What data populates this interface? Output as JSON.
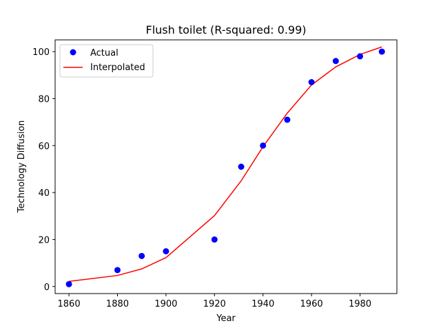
{
  "chart_data": {
    "type": "scatter",
    "title": "Flush toilet (R-squared: 0.99)",
    "xlabel": "Year",
    "ylabel": "Technology Diffusion",
    "xlim": [
      1854.3,
      1995.2
    ],
    "ylim": [
      -3.0,
      105.0
    ],
    "xticks": [
      1860,
      1880,
      1900,
      1920,
      1940,
      1960,
      1980
    ],
    "yticks": [
      0,
      20,
      40,
      60,
      80,
      100
    ],
    "grid": false,
    "legend_position": "top-left",
    "series": [
      {
        "name": "Actual",
        "kind": "markers",
        "color": "#0000ff",
        "x": [
          1860,
          1880,
          1890,
          1900,
          1920,
          1931,
          1940,
          1950,
          1960,
          1970,
          1980,
          1989
        ],
        "y": [
          1,
          7,
          13,
          15,
          20,
          51,
          60,
          71,
          87,
          96,
          98,
          100
        ]
      },
      {
        "name": "Interpolated",
        "kind": "line",
        "color": "#ff0000",
        "x": [
          1860,
          1880,
          1890,
          1900,
          1920,
          1931,
          1940,
          1950,
          1960,
          1970,
          1980,
          1989
        ],
        "y": [
          2.2,
          4.7,
          7.5,
          12.3,
          30.2,
          45.0,
          59.5,
          73.8,
          85.8,
          93.5,
          98.8,
          102.0
        ]
      }
    ]
  }
}
